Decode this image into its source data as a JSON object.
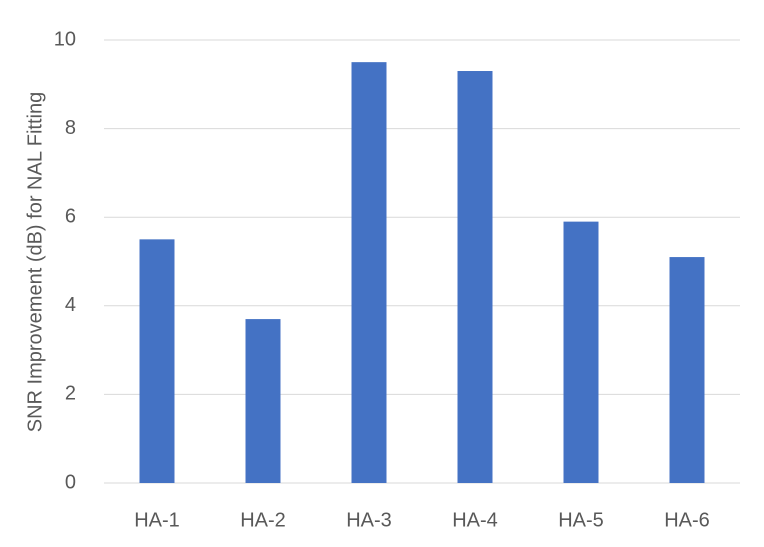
{
  "chart_data": {
    "type": "bar",
    "y_label": "SNR Improvement (dB) for NAL Fitting",
    "categories": [
      "HA-1",
      "HA-2",
      "HA-3",
      "HA-4",
      "HA-5",
      "HA-6"
    ],
    "values": [
      5.5,
      3.7,
      9.5,
      9.3,
      5.9,
      5.1
    ],
    "color": "#4472c4",
    "ylim": [
      0,
      10
    ],
    "yticks": [
      0,
      2,
      4,
      6,
      8,
      10
    ],
    "grid": true
  }
}
